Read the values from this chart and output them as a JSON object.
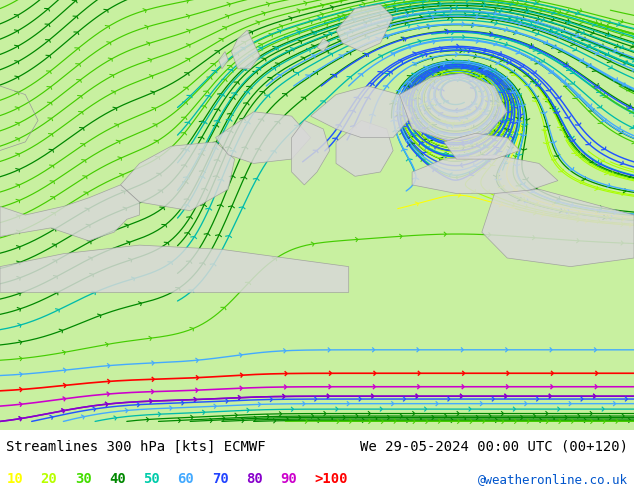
{
  "title_left": "Streamlines 300 hPa [kts] ECMWF",
  "title_right": "We 29-05-2024 00:00 UTC (00+120)",
  "watermark": "@weatheronline.co.uk",
  "bg_color": "#c8f0a0",
  "legend_values": [
    "10",
    "20",
    "30",
    "40",
    "50",
    "60",
    "70",
    "80",
    "90",
    ">100"
  ],
  "legend_colors": [
    "#ffff00",
    "#b8ff00",
    "#44dd00",
    "#008800",
    "#00ccaa",
    "#44aaff",
    "#2244ff",
    "#8800cc",
    "#cc00cc",
    "#ff0000"
  ],
  "title_fontsize": 10,
  "legend_fontsize": 10,
  "map_bg": "#c8f0a0",
  "land_color": "#d8d8d8",
  "bottom_bar_color": "#ffffff"
}
